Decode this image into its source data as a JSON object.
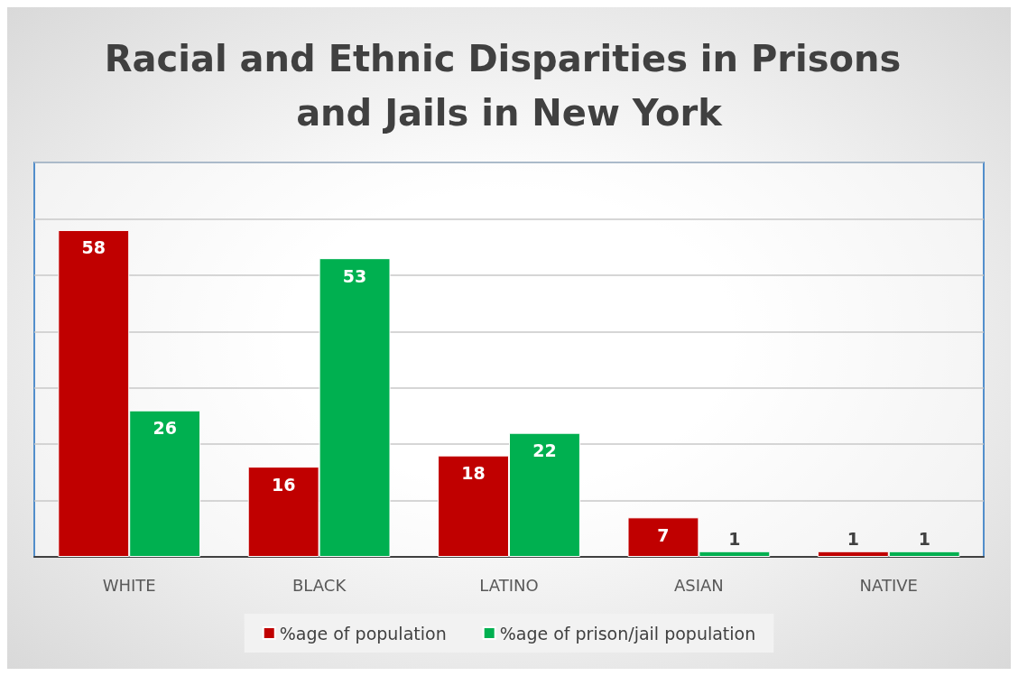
{
  "chart_data": {
    "type": "bar",
    "title": "Racial and Ethnic Disparities in Prisons and Jails in New York",
    "categories": [
      "WHITE",
      "BLACK",
      "LATINO",
      "ASIAN",
      "NATIVE"
    ],
    "series": [
      {
        "name": "%age of population",
        "color": "#c00000",
        "values": [
          58,
          16,
          18,
          7,
          1
        ]
      },
      {
        "name": "%age of prison/jail population",
        "color": "#00b050",
        "values": [
          26,
          53,
          22,
          1,
          1
        ]
      }
    ],
    "ylim": [
      0,
      70
    ],
    "yticks": [
      {
        "value": 0,
        "label": null
      },
      {
        "value": 10,
        "label": null
      },
      {
        "value": 20,
        "label": null
      },
      {
        "value": 30,
        "label": null
      },
      {
        "value": 40,
        "label": null
      },
      {
        "value": 50,
        "label": null
      },
      {
        "value": 60,
        "label": null
      },
      {
        "value": 70,
        "label": null
      }
    ],
    "tick_labels": "x",
    "grid": "y",
    "legend": "bottom",
    "data_labels": true
  }
}
